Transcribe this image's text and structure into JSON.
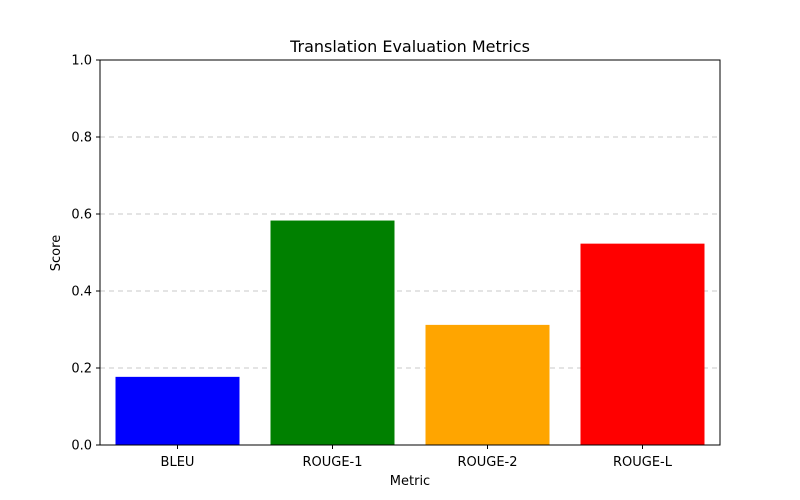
{
  "chart_data": {
    "type": "bar",
    "title": "Translation Evaluation Metrics",
    "xlabel": "Metric",
    "ylabel": "Score",
    "categories": [
      "BLEU",
      "ROUGE-1",
      "ROUGE-2",
      "ROUGE-L"
    ],
    "values": [
      0.177,
      0.583,
      0.312,
      0.523
    ],
    "colors": [
      "#0000ff",
      "#008000",
      "#ffa500",
      "#ff0000"
    ],
    "ylim": [
      0,
      1.0
    ],
    "yticks": [
      "0.0",
      "0.2",
      "0.4",
      "0.6",
      "0.8",
      "1.0"
    ],
    "ytick_values": [
      0,
      0.2,
      0.4,
      0.6,
      0.8,
      1.0
    ],
    "grid": "y-dashed",
    "legend": "none"
  }
}
